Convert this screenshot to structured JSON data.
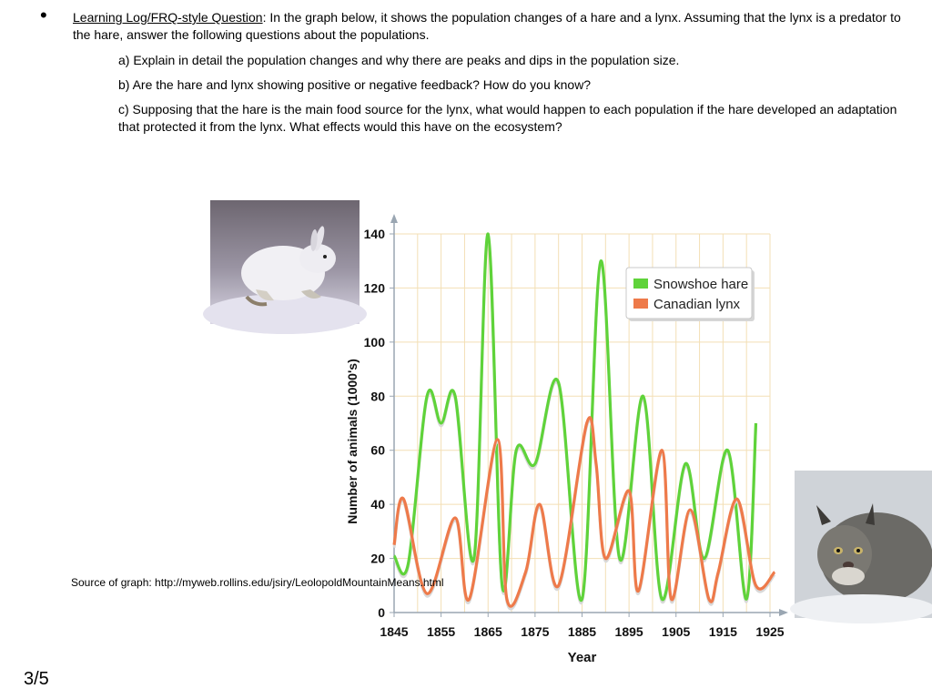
{
  "question": {
    "bullet": "•",
    "label": "Learning Log/FRQ-style Question",
    "intro": ": In the graph below, it shows the population changes of a hare and a lynx. Assuming that the lynx is a predator to the hare, answer the following questions about the populations.",
    "parts": [
      "a) Explain in detail the population changes and why there are peaks and dips in the population size.",
      "b) Are the hare and lynx showing positive or negative feedback? How do you know?",
      "c) Supposing that the hare is the main food source for the lynx, what would happen to each population if the hare developed an adaptation that protected it from the lynx. What effects would this have on the ecosystem?"
    ]
  },
  "source_text": "Source of graph: http://myweb.rollins.edu/jsiry/LeolopoldMountainMeans.html",
  "page_number": "3/5",
  "images": {
    "left_photo": "snowshoe-hare-photo",
    "right_photo": "canadian-lynx-photo"
  },
  "chart_data": {
    "type": "line",
    "xlabel": "Year",
    "ylabel": "Number of animals (1000's)",
    "xlim": [
      1845,
      1925
    ],
    "ylim": [
      0,
      140
    ],
    "xticks": [
      "1845",
      "1855",
      "1865",
      "1875",
      "1885",
      "1895",
      "1905",
      "1915",
      "1925"
    ],
    "yticks": [
      "0",
      "20",
      "40",
      "60",
      "80",
      "100",
      "120",
      "140"
    ],
    "grid": true,
    "legend_position": "top-right",
    "series": [
      {
        "name": "Snowshoe hare",
        "color": "#5fd33a",
        "x": [
          1845,
          1848,
          1852,
          1855,
          1858,
          1862,
          1865,
          1868,
          1871,
          1875,
          1880,
          1885,
          1889,
          1893,
          1898,
          1902,
          1907,
          1911,
          1916,
          1920,
          1922
        ],
        "y": [
          21,
          18,
          80,
          70,
          80,
          20,
          140,
          10,
          60,
          55,
          85,
          5,
          130,
          20,
          80,
          5,
          55,
          20,
          60,
          5,
          70
        ]
      },
      {
        "name": "Canadian lynx",
        "color": "#ee7a4a",
        "x": [
          1845,
          1847,
          1852,
          1858,
          1861,
          1867,
          1869,
          1873,
          1876,
          1880,
          1886,
          1888,
          1890,
          1895,
          1897,
          1902,
          1904,
          1908,
          1912,
          1914,
          1918,
          1922,
          1926
        ],
        "y": [
          25,
          42,
          7,
          35,
          5,
          64,
          5,
          15,
          40,
          10,
          70,
          55,
          20,
          45,
          8,
          60,
          5,
          38,
          5,
          15,
          42,
          10,
          15
        ]
      }
    ]
  }
}
